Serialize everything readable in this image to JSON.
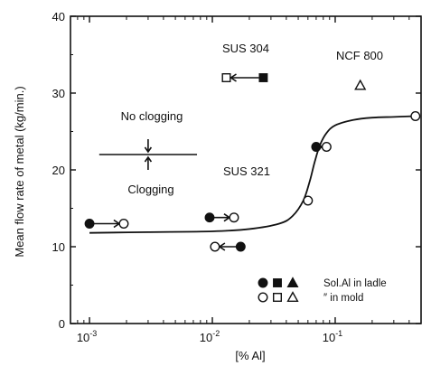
{
  "chart_data": {
    "type": "scatter",
    "xlabel": "[% Al]",
    "ylabel": "Mean flow rate of metal  (kg/min.)",
    "xscale": "log",
    "xlim": [
      0.0007,
      0.5
    ],
    "ylim": [
      0,
      40
    ],
    "x_ticks": [
      {
        "value": 0.001,
        "base": "10",
        "exp": "-3"
      },
      {
        "value": 0.01,
        "base": "10",
        "exp": "-2"
      },
      {
        "value": 0.1,
        "base": "10",
        "exp": "-1"
      }
    ],
    "y_ticks": [
      {
        "value": 0,
        "label": "0"
      },
      {
        "value": 10,
        "label": "10"
      },
      {
        "value": 20,
        "label": "20"
      },
      {
        "value": 30,
        "label": "30"
      },
      {
        "value": 40,
        "label": "40"
      }
    ],
    "grid": false,
    "series": [
      {
        "name": "Sol.Al in ladle",
        "marker": "circle-filled",
        "points": [
          [
            0.001,
            13
          ],
          [
            0.0095,
            13.8
          ],
          [
            0.017,
            10
          ],
          [
            0.07,
            23
          ]
        ]
      },
      {
        "name": "Sol.Al in ladle",
        "marker": "square-filled",
        "points": [
          [
            0.026,
            32
          ]
        ]
      },
      {
        "name": "Sol.Al in mold",
        "marker": "circle-open",
        "points": [
          [
            0.0019,
            13
          ],
          [
            0.015,
            13.8
          ],
          [
            0.0105,
            10
          ],
          [
            0.06,
            16
          ],
          [
            0.085,
            23
          ],
          [
            0.45,
            27
          ]
        ]
      },
      {
        "name": "Sol.Al in mold",
        "marker": "square-open",
        "points": [
          [
            0.013,
            32
          ]
        ]
      },
      {
        "name": "Sol.Al in mold",
        "marker": "triangle-open",
        "points": [
          [
            0.16,
            31
          ]
        ]
      }
    ],
    "arrows": [
      {
        "from": [
          0.001,
          13
        ],
        "to": [
          0.0019,
          13
        ]
      },
      {
        "from": [
          0.0095,
          13.8
        ],
        "to": [
          0.015,
          13.8
        ]
      },
      {
        "from": [
          0.017,
          10
        ],
        "to": [
          0.0105,
          10
        ]
      },
      {
        "from": [
          0.026,
          32
        ],
        "to": [
          0.013,
          32
        ]
      },
      {
        "from": [
          0.07,
          23
        ],
        "to": [
          0.085,
          23
        ]
      }
    ],
    "curve": [
      [
        0.001,
        11.8
      ],
      [
        0.003,
        11.9
      ],
      [
        0.01,
        12
      ],
      [
        0.02,
        12.3
      ],
      [
        0.035,
        13
      ],
      [
        0.045,
        14
      ],
      [
        0.055,
        16
      ],
      [
        0.062,
        18.5
      ],
      [
        0.068,
        21
      ],
      [
        0.075,
        23.2
      ],
      [
        0.085,
        24.8
      ],
      [
        0.1,
        25.8
      ],
      [
        0.14,
        26.5
      ],
      [
        0.2,
        26.8
      ],
      [
        0.3,
        26.9
      ],
      [
        0.45,
        27
      ]
    ],
    "annotations": {
      "sus304": "SUS 304",
      "ncf800": "NCF 800",
      "sus321": "SUS 321",
      "no_clogging": "No clogging",
      "clogging": "Clogging"
    },
    "threshold_indicator": {
      "x_from": 0.0012,
      "x_to": 0.0075,
      "y": 22
    },
    "legend": {
      "position": "bottom-right",
      "row1_label": "Sol.Al in ladle",
      "row2_label": "″  in mold"
    }
  }
}
